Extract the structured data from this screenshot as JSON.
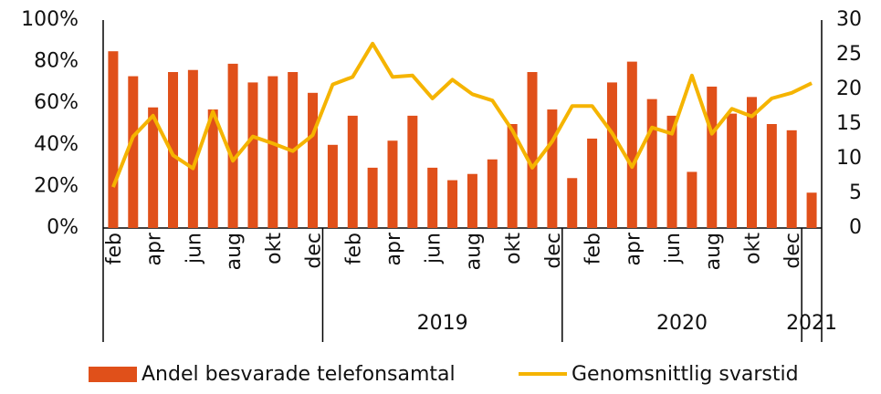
{
  "chart_data": {
    "type": "bar+line",
    "categories": [
      "feb",
      null,
      "apr",
      null,
      "jun",
      null,
      "aug",
      null,
      "okt",
      null,
      "dec",
      null,
      "feb",
      null,
      "apr",
      null,
      "jun",
      null,
      "aug",
      null,
      "okt",
      null,
      "dec",
      null,
      "feb",
      null,
      "apr",
      null,
      "jun",
      null,
      "aug",
      null,
      "okt",
      null,
      "dec",
      null
    ],
    "group_sizes": [
      11,
      12,
      12,
      1
    ],
    "group_labels": [
      null,
      "2019",
      "2020",
      "2021"
    ],
    "series": [
      {
        "name": "Andel besvarade telefonsamtal",
        "type": "bar",
        "color": "#e0501a",
        "axis": "y",
        "values": [
          85,
          73,
          58,
          75,
          76,
          57,
          79,
          70,
          73,
          75,
          65,
          40,
          54,
          29,
          42,
          54,
          29,
          23,
          26,
          33,
          50,
          75,
          57,
          24,
          43,
          70,
          80,
          62,
          54,
          27,
          68,
          55,
          63,
          50,
          47,
          17
        ]
      },
      {
        "name": "Genomsnittlig svarstid",
        "type": "line",
        "color": "#f5b400",
        "axis": "y2",
        "values": [
          5.9,
          13.2,
          16.2,
          10.5,
          8.6,
          16.8,
          9.7,
          13.2,
          12.2,
          11.1,
          13.4,
          20.7,
          21.8,
          26.6,
          21.8,
          22,
          18.7,
          21.4,
          19.3,
          18.4,
          14.1,
          8.7,
          12.5,
          17.6,
          17.6,
          13.7,
          8.8,
          14.5,
          13.6,
          22,
          13.6,
          17.2,
          16.1,
          18.7,
          19.5,
          20.9
        ]
      }
    ],
    "ylim": [
      0,
      100
    ],
    "yticks": [
      {
        "value": 0,
        "label": "0%"
      },
      {
        "value": 20,
        "label": "20%"
      },
      {
        "value": 40,
        "label": "40%"
      },
      {
        "value": 60,
        "label": "60%"
      },
      {
        "value": 80,
        "label": "80%"
      },
      {
        "value": 100,
        "label": "100%"
      }
    ],
    "y2lim": [
      0,
      30
    ],
    "y2ticks": [
      0,
      5,
      10,
      15,
      20,
      25,
      30
    ],
    "legend": "bottom"
  }
}
